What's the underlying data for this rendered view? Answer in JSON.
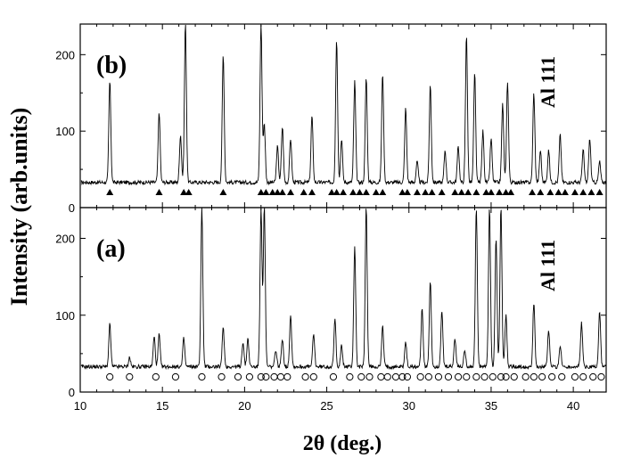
{
  "chart_data": {
    "type": "line",
    "xlabel": "2θ (deg.)",
    "ylabel": "Intensity (arb.units)",
    "xlim": [
      10,
      42
    ],
    "ylim": [
      0,
      240
    ],
    "x_ticks": [
      10,
      15,
      20,
      25,
      30,
      35,
      40
    ],
    "y_ticks": [
      0,
      100,
      200
    ],
    "grid": false,
    "panels": [
      {
        "id": "b",
        "label": "(b)",
        "annotation": "Al 111",
        "baseline": 33,
        "marker": "filled-triangle",
        "peaks": [
          {
            "x": 11.8,
            "y": 165
          },
          {
            "x": 14.8,
            "y": 125
          },
          {
            "x": 16.1,
            "y": 95
          },
          {
            "x": 16.4,
            "y": 240
          },
          {
            "x": 18.7,
            "y": 200
          },
          {
            "x": 21.0,
            "y": 240
          },
          {
            "x": 21.2,
            "y": 110
          },
          {
            "x": 22.0,
            "y": 80
          },
          {
            "x": 22.3,
            "y": 105
          },
          {
            "x": 22.8,
            "y": 90
          },
          {
            "x": 24.1,
            "y": 120
          },
          {
            "x": 25.6,
            "y": 220
          },
          {
            "x": 25.9,
            "y": 90
          },
          {
            "x": 26.7,
            "y": 165
          },
          {
            "x": 27.4,
            "y": 170
          },
          {
            "x": 28.4,
            "y": 175
          },
          {
            "x": 29.8,
            "y": 130
          },
          {
            "x": 30.5,
            "y": 60
          },
          {
            "x": 31.3,
            "y": 160
          },
          {
            "x": 32.2,
            "y": 75
          },
          {
            "x": 33.0,
            "y": 80
          },
          {
            "x": 33.5,
            "y": 225
          },
          {
            "x": 34.0,
            "y": 175
          },
          {
            "x": 34.5,
            "y": 100
          },
          {
            "x": 35.0,
            "y": 90
          },
          {
            "x": 35.7,
            "y": 135
          },
          {
            "x": 36.0,
            "y": 165
          },
          {
            "x": 37.6,
            "y": 150
          },
          {
            "x": 38.0,
            "y": 75
          },
          {
            "x": 38.5,
            "y": 75
          },
          {
            "x": 39.2,
            "y": 95
          },
          {
            "x": 40.6,
            "y": 75
          },
          {
            "x": 41.0,
            "y": 90
          },
          {
            "x": 41.6,
            "y": 60
          }
        ],
        "reflections": [
          11.8,
          14.8,
          16.3,
          16.6,
          18.7,
          21.0,
          21.3,
          21.7,
          22.0,
          22.3,
          22.8,
          23.6,
          24.1,
          25.3,
          25.6,
          26.0,
          26.6,
          27.0,
          27.4,
          28.0,
          28.4,
          29.6,
          29.9,
          30.5,
          31.0,
          31.4,
          32.0,
          32.8,
          33.2,
          33.6,
          34.1,
          34.7,
          35.0,
          35.5,
          35.9,
          36.2,
          37.5,
          38.0,
          38.6,
          39.1,
          39.5,
          40.1,
          40.6,
          41.1,
          41.6
        ]
      },
      {
        "id": "a",
        "label": "(a)",
        "annotation": "Al 111",
        "baseline": 33,
        "marker": "open-circle",
        "peaks": [
          {
            "x": 11.8,
            "y": 88
          },
          {
            "x": 13.0,
            "y": 45
          },
          {
            "x": 14.5,
            "y": 72
          },
          {
            "x": 14.8,
            "y": 75
          },
          {
            "x": 16.3,
            "y": 70
          },
          {
            "x": 17.4,
            "y": 240
          },
          {
            "x": 18.7,
            "y": 85
          },
          {
            "x": 19.9,
            "y": 65
          },
          {
            "x": 20.2,
            "y": 70
          },
          {
            "x": 21.0,
            "y": 240
          },
          {
            "x": 21.2,
            "y": 240
          },
          {
            "x": 21.9,
            "y": 55
          },
          {
            "x": 22.3,
            "y": 70
          },
          {
            "x": 22.8,
            "y": 100
          },
          {
            "x": 24.2,
            "y": 75
          },
          {
            "x": 25.5,
            "y": 95
          },
          {
            "x": 25.9,
            "y": 60
          },
          {
            "x": 26.7,
            "y": 190
          },
          {
            "x": 27.4,
            "y": 240
          },
          {
            "x": 28.4,
            "y": 85
          },
          {
            "x": 29.8,
            "y": 65
          },
          {
            "x": 30.8,
            "y": 110
          },
          {
            "x": 31.3,
            "y": 145
          },
          {
            "x": 32.0,
            "y": 105
          },
          {
            "x": 32.8,
            "y": 70
          },
          {
            "x": 33.4,
            "y": 55
          },
          {
            "x": 34.1,
            "y": 240
          },
          {
            "x": 34.9,
            "y": 240
          },
          {
            "x": 35.3,
            "y": 200
          },
          {
            "x": 35.6,
            "y": 240
          },
          {
            "x": 35.9,
            "y": 100
          },
          {
            "x": 37.6,
            "y": 115
          },
          {
            "x": 38.5,
            "y": 80
          },
          {
            "x": 39.2,
            "y": 60
          },
          {
            "x": 40.5,
            "y": 90
          },
          {
            "x": 41.6,
            "y": 105
          }
        ],
        "reflections": [
          11.8,
          13.0,
          14.6,
          15.8,
          17.4,
          18.6,
          19.6,
          20.3,
          21.0,
          21.3,
          21.8,
          22.2,
          22.6,
          23.7,
          24.2,
          25.4,
          26.4,
          27.1,
          27.6,
          28.3,
          28.7,
          29.2,
          29.6,
          29.9,
          30.7,
          31.2,
          31.8,
          32.4,
          33.0,
          33.5,
          34.1,
          34.6,
          35.1,
          35.6,
          35.9,
          36.4,
          37.1,
          37.6,
          38.1,
          38.7,
          39.3,
          40.1,
          40.6,
          41.2,
          41.7
        ]
      }
    ]
  }
}
